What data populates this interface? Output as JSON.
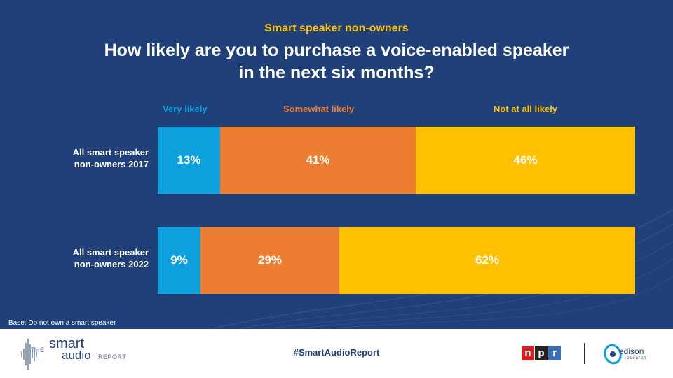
{
  "header": {
    "subtitle": "Smart speaker non-owners",
    "title_line1": "How likely are you to purchase a voice-enabled speaker",
    "title_line2": "in the next six months?"
  },
  "chart_data": {
    "type": "bar",
    "orientation": "horizontal",
    "stacked": true,
    "title": "How likely are you to purchase a voice-enabled speaker in the next six months?",
    "subtitle": "Smart speaker non-owners",
    "legend_position": "top",
    "categories": [
      [
        "All smart speaker",
        "non-owners 2017"
      ],
      [
        "All smart speaker",
        "non-owners 2022"
      ]
    ],
    "series": [
      {
        "name": "Very likely",
        "color": "#0ea0dd",
        "values": [
          13,
          9
        ],
        "labels": [
          "13%",
          "9%"
        ]
      },
      {
        "name": "Somewhat likely",
        "color": "#ed7d31",
        "values": [
          41,
          29
        ],
        "labels": [
          "41%",
          "29%"
        ]
      },
      {
        "name": "Not at all likely",
        "color": "#ffc000",
        "values": [
          46,
          62
        ],
        "labels": [
          "46%",
          "62%"
        ]
      }
    ],
    "xlim": [
      0,
      100
    ],
    "unit": "%"
  },
  "base_note": "Base: Do not own a smart speaker",
  "footer": {
    "brand_the": "THE",
    "brand_smart": "smart",
    "brand_audio": "audio",
    "brand_report": "REPORT",
    "hashtag": "#SmartAudioReport",
    "npr_letters": [
      "n",
      "p",
      "r"
    ],
    "edison_name": "edison",
    "edison_sub": "research"
  }
}
